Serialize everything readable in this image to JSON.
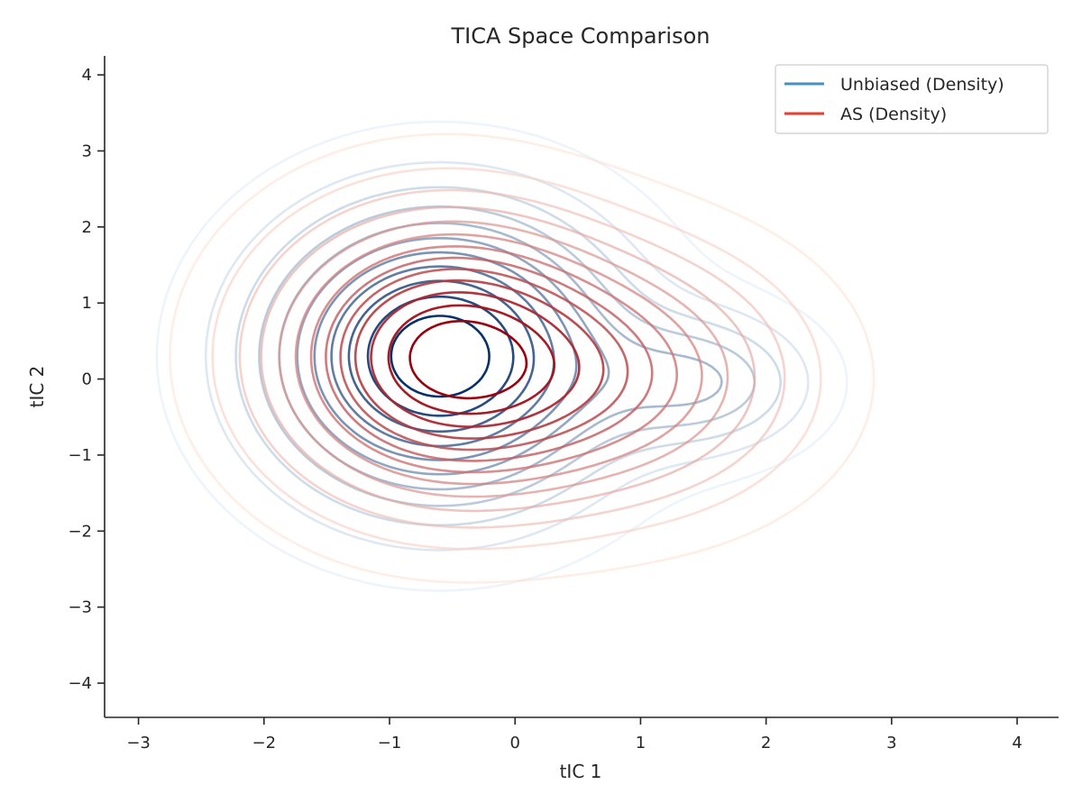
{
  "chart_data": {
    "type": "contour",
    "title": "TICA Space Comparison",
    "xlabel": "tIC 1",
    "ylabel": "tIC 2",
    "xlim": [
      -3.27,
      4.33
    ],
    "ylim": [
      -4.45,
      4.25
    ],
    "xticks": [
      -3,
      -2,
      -1,
      0,
      1,
      2,
      3,
      4
    ],
    "yticks": [
      -4,
      -3,
      -2,
      -1,
      0,
      1,
      2,
      3,
      4
    ],
    "xtick_labels": [
      "−3",
      "−2",
      "−1",
      "0",
      "1",
      "2",
      "3",
      "4"
    ],
    "ytick_labels": [
      "−4",
      "−3",
      "−2",
      "−1",
      "0",
      "1",
      "2",
      "3",
      "4"
    ],
    "grid": false,
    "legend_position": "top-right",
    "series": [
      {
        "name": "Unbiased (Density)",
        "legend_color": "#4292c6",
        "color_low": "#deebf7",
        "color_high": "#08306b",
        "components": [
          {
            "cx": -0.6,
            "cy": 0.3,
            "rx": 1.9,
            "ry": 2.6,
            "weight": 1.0
          },
          {
            "cx": 1.55,
            "cy": -0.05,
            "rx": 1.15,
            "ry": 1.25,
            "weight": 0.35
          }
        ],
        "levels": 11
      },
      {
        "name": "AS (Density)",
        "legend_color": "#ef3b2c",
        "color_low": "#fee0d2",
        "color_high": "#99000d",
        "components": [
          {
            "cx": -0.6,
            "cy": 0.3,
            "rx": 1.85,
            "ry": 2.5,
            "weight": 1.0
          },
          {
            "cx": 1.0,
            "cy": 0.0,
            "rx": 1.9,
            "ry": 2.3,
            "weight": 0.45
          }
        ],
        "levels": 13
      }
    ]
  }
}
